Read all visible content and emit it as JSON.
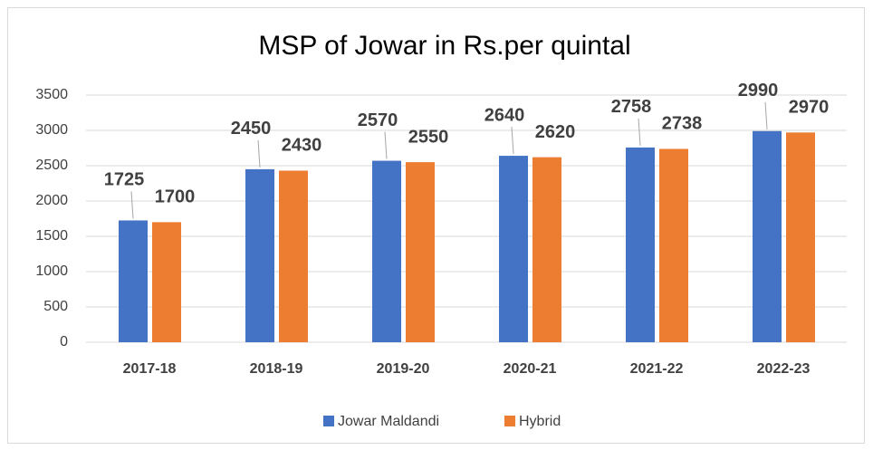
{
  "chart_data": {
    "type": "bar",
    "title": "MSP of Jowar in Rs.per quintal",
    "categories": [
      "2017-18",
      "2018-19",
      "2019-20",
      "2020-21",
      "2021-22",
      "2022-23"
    ],
    "series": [
      {
        "name": "Jowar Maldandi",
        "color": "#4472c4",
        "values": [
          1725,
          2450,
          2570,
          2640,
          2758,
          2990
        ]
      },
      {
        "name": "Hybrid",
        "color": "#ed7d31",
        "values": [
          1700,
          2430,
          2550,
          2620,
          2738,
          2970
        ]
      }
    ],
    "ylim": [
      0,
      3500
    ],
    "yticks": [
      0,
      500,
      1000,
      1500,
      2000,
      2500,
      3000,
      3500
    ],
    "grid": true,
    "legend": "bottom"
  }
}
